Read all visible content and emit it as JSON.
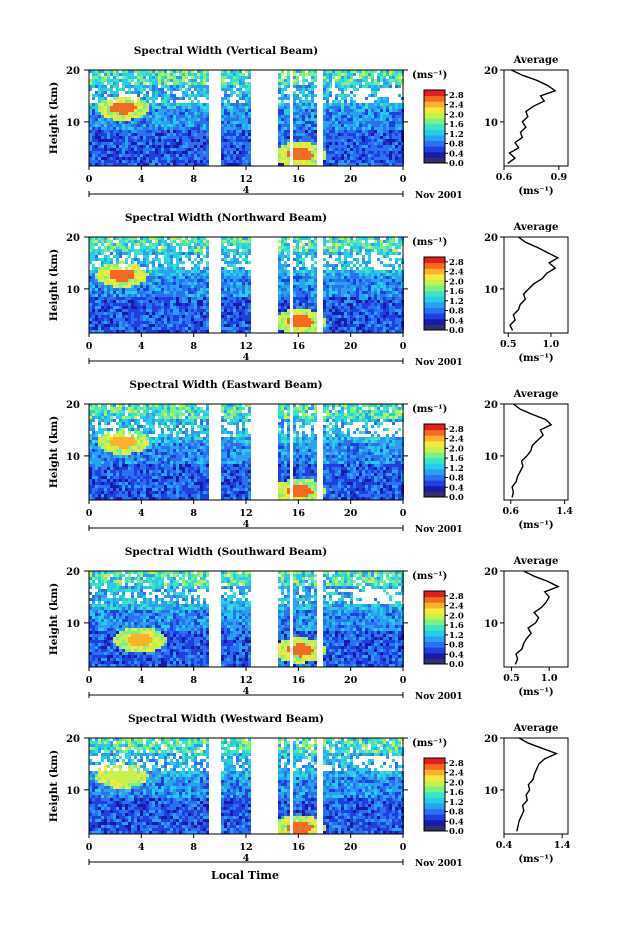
{
  "figure": {
    "xlabel_bottom": "Local Time",
    "colorbar_unit": "(ms⁻¹)",
    "colorbar_ticks": [
      "0.0",
      "0.4",
      "0.8",
      "1.2",
      "1.6",
      "2.0",
      "2.4",
      "2.8"
    ],
    "colorbar_range": [
      0,
      3.0
    ],
    "colorbar_colors": [
      "#30306a",
      "#1a1aa8",
      "#1f3fe0",
      "#2a70f0",
      "#2aa0f0",
      "#27cde8",
      "#3ce3c4",
      "#7bf08a",
      "#c6f04c",
      "#f6e83c",
      "#f9b22e",
      "#f56a20",
      "#e02020"
    ],
    "avg_title": "Average",
    "avg_xlabel": "(ms⁻¹)"
  },
  "chart_data": [
    {
      "type": "heatmap",
      "title": "Spectral Width (Vertical Beam)",
      "ylabel": "Height (km)",
      "ylim": [
        1.5,
        20
      ],
      "y_ticks": [
        "20",
        "10"
      ],
      "xlim": [
        0,
        24
      ],
      "x_ticks": [
        "0",
        "4",
        "8",
        "12",
        "16",
        "20",
        "0"
      ],
      "date_marker": "4",
      "date_label": "Nov 2001",
      "data_gaps_hours": [
        [
          9,
          10
        ],
        [
          12.2,
          14.3
        ],
        [
          15.2,
          15.5
        ],
        [
          17.4,
          17.7
        ]
      ],
      "features": [
        {
          "x": 2.5,
          "y": 13,
          "level": 2.8
        },
        {
          "x": 16,
          "y": 4,
          "level": 2.8
        }
      ],
      "average": {
        "type": "line",
        "title": "Average",
        "xlim": [
          0.6,
          0.95
        ],
        "x_ticks": [
          "0.6",
          "0.9"
        ],
        "y_ticks": [
          "20",
          "10"
        ],
        "height_km": [
          2,
          3,
          4,
          5,
          6,
          7,
          8,
          9,
          10,
          11,
          12,
          13,
          14,
          15,
          16,
          17,
          18,
          19,
          20
        ],
        "values": [
          0.62,
          0.66,
          0.63,
          0.68,
          0.66,
          0.7,
          0.69,
          0.72,
          0.7,
          0.73,
          0.72,
          0.76,
          0.82,
          0.8,
          0.88,
          0.84,
          0.78,
          0.7,
          0.64
        ]
      }
    },
    {
      "type": "heatmap",
      "title": "Spectral Width (Northward Beam)",
      "ylabel": "Height (km)",
      "ylim": [
        1.5,
        20
      ],
      "y_ticks": [
        "20",
        "10"
      ],
      "xlim": [
        0,
        24
      ],
      "x_ticks": [
        "0",
        "4",
        "8",
        "12",
        "16",
        "20",
        "0"
      ],
      "date_marker": "4",
      "date_label": "Nov 2001",
      "data_gaps_hours": [
        [
          9,
          10
        ],
        [
          12.2,
          14.3
        ],
        [
          15.2,
          15.5
        ],
        [
          17.4,
          17.7
        ]
      ],
      "features": [
        {
          "x": 2.4,
          "y": 13,
          "level": 2.8
        },
        {
          "x": 16,
          "y": 4,
          "level": 2.8
        }
      ],
      "average": {
        "type": "line",
        "title": "Average",
        "xlim": [
          0.45,
          1.2
        ],
        "x_ticks": [
          "0.5",
          "1.0"
        ],
        "y_ticks": [
          "20",
          "10"
        ],
        "height_km": [
          2,
          3,
          4,
          5,
          6,
          7,
          8,
          9,
          10,
          11,
          12,
          13,
          14,
          15,
          16,
          17,
          18,
          19,
          20
        ],
        "values": [
          0.55,
          0.52,
          0.58,
          0.56,
          0.62,
          0.64,
          0.7,
          0.68,
          0.74,
          0.8,
          0.9,
          0.95,
          1.05,
          0.98,
          1.08,
          0.96,
          0.84,
          0.7,
          0.62
        ]
      }
    },
    {
      "type": "heatmap",
      "title": "Spectral Width (Eastward Beam)",
      "ylabel": "Height (km)",
      "ylim": [
        1.5,
        20
      ],
      "y_ticks": [
        "20",
        "10"
      ],
      "xlim": [
        0,
        24
      ],
      "x_ticks": [
        "0",
        "4",
        "8",
        "12",
        "16",
        "20",
        "0"
      ],
      "date_marker": "4",
      "date_label": "Nov 2001",
      "data_gaps_hours": [
        [
          9,
          10
        ],
        [
          12.2,
          14.3
        ],
        [
          15.2,
          15.5
        ],
        [
          17.4,
          17.7
        ]
      ],
      "features": [
        {
          "x": 2.5,
          "y": 13,
          "level": 2.4
        },
        {
          "x": 16,
          "y": 3.5,
          "level": 2.8
        }
      ],
      "average": {
        "type": "line",
        "title": "Average",
        "xlim": [
          0.5,
          1.45
        ],
        "x_ticks": [
          "0.6",
          "1.4"
        ],
        "y_ticks": [
          "20",
          "10"
        ],
        "height_km": [
          2,
          3,
          4,
          5,
          6,
          7,
          8,
          9,
          10,
          11,
          12,
          13,
          14,
          15,
          16,
          17,
          18,
          19,
          20
        ],
        "values": [
          0.62,
          0.64,
          0.62,
          0.68,
          0.7,
          0.74,
          0.78,
          0.76,
          0.84,
          0.9,
          0.92,
          1.0,
          1.08,
          1.04,
          1.2,
          1.12,
          0.92,
          0.74,
          0.64
        ]
      }
    },
    {
      "type": "heatmap",
      "title": "Spectral Width (Southward Beam)",
      "ylabel": "Height (km)",
      "ylim": [
        1.5,
        20
      ],
      "y_ticks": [
        "20",
        "10"
      ],
      "xlim": [
        0,
        24
      ],
      "x_ticks": [
        "0",
        "4",
        "8",
        "12",
        "16",
        "20",
        "0"
      ],
      "date_marker": "4",
      "date_label": "Nov 2001",
      "data_gaps_hours": [
        [
          9,
          10
        ],
        [
          12.2,
          14.3
        ],
        [
          15.2,
          15.5
        ],
        [
          17.4,
          17.7
        ]
      ],
      "features": [
        {
          "x": 3.8,
          "y": 7,
          "level": 2.4
        },
        {
          "x": 16,
          "y": 5,
          "level": 2.8
        }
      ],
      "average": {
        "type": "line",
        "title": "Average",
        "xlim": [
          0.4,
          1.25
        ],
        "x_ticks": [
          "0.5",
          "1.0"
        ],
        "y_ticks": [
          "20",
          "10"
        ],
        "height_km": [
          2,
          3,
          4,
          5,
          6,
          7,
          8,
          9,
          10,
          11,
          12,
          13,
          14,
          15,
          16,
          17,
          18,
          19,
          20
        ],
        "values": [
          0.55,
          0.58,
          0.56,
          0.64,
          0.66,
          0.7,
          0.76,
          0.72,
          0.82,
          0.86,
          0.8,
          0.9,
          0.96,
          1.0,
          0.94,
          1.12,
          0.98,
          0.8,
          0.66
        ]
      }
    },
    {
      "type": "heatmap",
      "title": "Spectral Width (Westward Beam)",
      "ylabel": "Height (km)",
      "ylim": [
        1.5,
        20
      ],
      "y_ticks": [
        "20",
        "10"
      ],
      "xlim": [
        0,
        24
      ],
      "x_ticks": [
        "0",
        "4",
        "8",
        "12",
        "16",
        "20",
        "0"
      ],
      "date_marker": "4",
      "date_label": "Nov 2001",
      "data_gaps_hours": [
        [
          9,
          10
        ],
        [
          12.2,
          14.3
        ],
        [
          15.2,
          15.5
        ],
        [
          17.4,
          17.7
        ]
      ],
      "features": [
        {
          "x": 2.4,
          "y": 13,
          "level": 2.0
        },
        {
          "x": 16,
          "y": 3,
          "level": 2.8
        }
      ],
      "average": {
        "type": "line",
        "title": "Average",
        "xlim": [
          0.4,
          1.5
        ],
        "x_ticks": [
          "0.4",
          "1.4"
        ],
        "y_ticks": [
          "20",
          "10"
        ],
        "height_km": [
          2,
          3,
          4,
          5,
          6,
          7,
          8,
          9,
          10,
          11,
          12,
          13,
          14,
          15,
          16,
          17,
          18,
          19,
          20
        ],
        "values": [
          0.62,
          0.64,
          0.66,
          0.7,
          0.74,
          0.72,
          0.8,
          0.78,
          0.84,
          0.82,
          0.9,
          0.92,
          0.96,
          1.0,
          1.1,
          1.3,
          1.06,
          0.82,
          0.66
        ]
      }
    }
  ]
}
